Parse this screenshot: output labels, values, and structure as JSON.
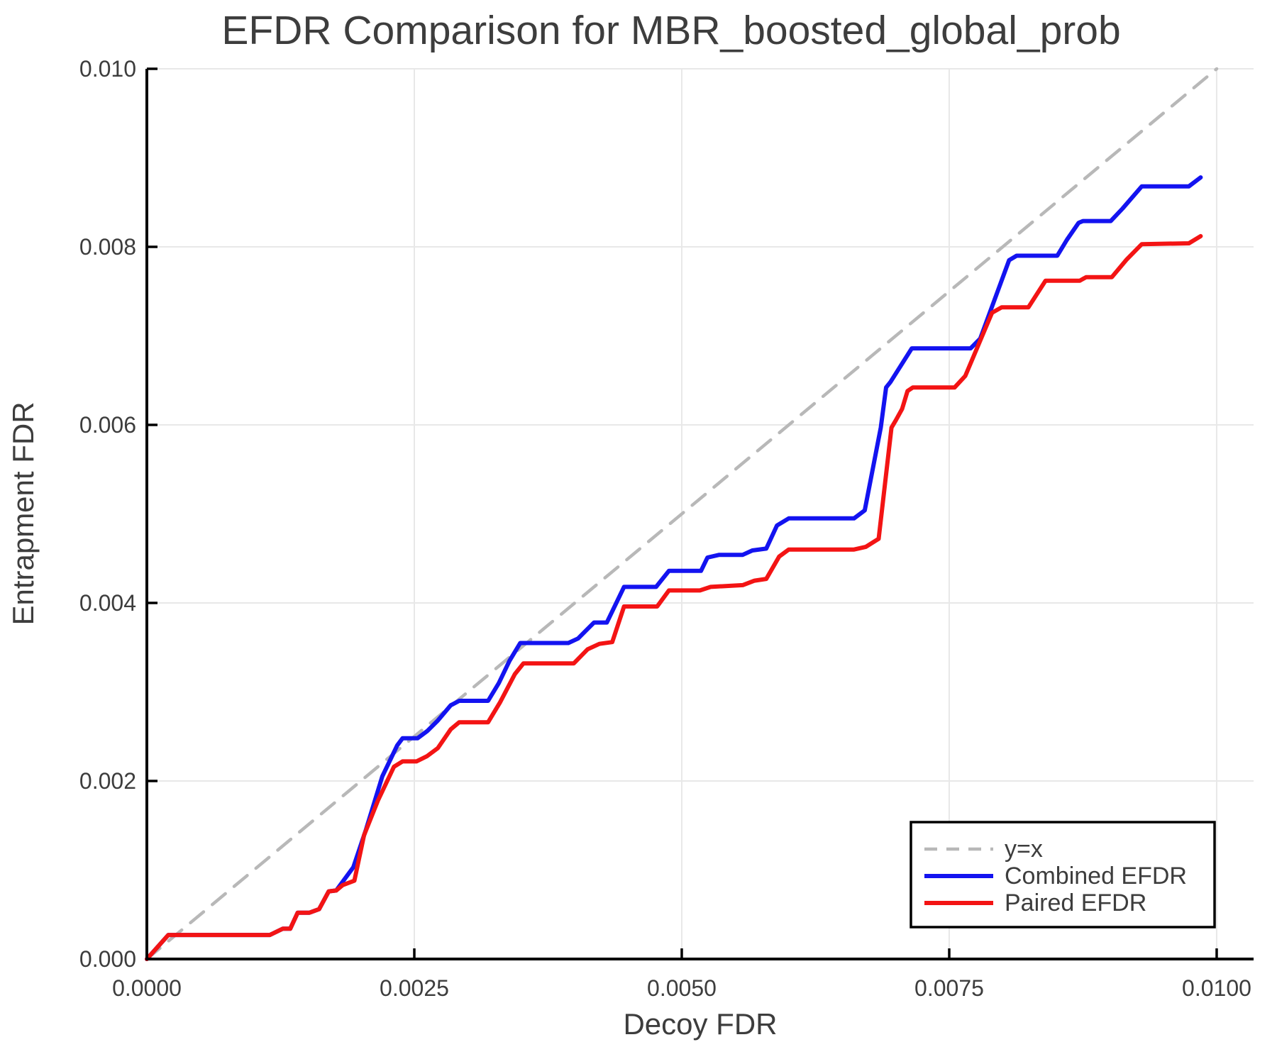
{
  "chart_data": {
    "type": "line",
    "title": "EFDR Comparison for MBR_boosted_global_prob",
    "xlabel": "Decoy FDR",
    "ylabel": "Entrapment FDR",
    "xlim": [
      0,
      0.010345
    ],
    "ylim": [
      0,
      0.01
    ],
    "x_ticks": [
      0.0,
      0.0025,
      0.005,
      0.0075,
      0.01
    ],
    "x_tick_labels": [
      "0.0000",
      "0.0025",
      "0.0050",
      "0.0075",
      "0.0100"
    ],
    "y_ticks": [
      0.0,
      0.002,
      0.004,
      0.006,
      0.008,
      0.01
    ],
    "y_tick_labels": [
      "0.000",
      "0.002",
      "0.004",
      "0.006",
      "0.008",
      "0.010"
    ],
    "grid": true,
    "legend_position": "lower right",
    "colors": {
      "grid": "#e8e8e8",
      "spine": "#000000",
      "text": "#3d3d3d",
      "identity": "#b8b8b8",
      "combined": "#1313f0",
      "paired": "#f31414"
    },
    "series": [
      {
        "name": "y=x",
        "style": "dashed",
        "color": "#b8b8b8",
        "points": [
          [
            0.0,
            0.0
          ],
          [
            0.01,
            0.01
          ]
        ]
      },
      {
        "name": "Combined EFDR",
        "style": "solid",
        "color": "#1313f0",
        "points": [
          [
            0.0,
            0.0
          ],
          [
            0.0002,
            0.00027
          ],
          [
            0.00115,
            0.00027
          ],
          [
            0.00127,
            0.00034
          ],
          [
            0.00134,
            0.00034
          ],
          [
            0.00141,
            0.00052
          ],
          [
            0.00152,
            0.00052
          ],
          [
            0.00161,
            0.00056
          ],
          [
            0.0017,
            0.00076
          ],
          [
            0.00177,
            0.00077
          ],
          [
            0.00193,
            0.00103
          ],
          [
            0.00205,
            0.00146
          ],
          [
            0.0022,
            0.00205
          ],
          [
            0.00234,
            0.0024
          ],
          [
            0.00239,
            0.00248
          ],
          [
            0.00253,
            0.00248
          ],
          [
            0.00262,
            0.00256
          ],
          [
            0.00272,
            0.00268
          ],
          [
            0.00284,
            0.00285
          ],
          [
            0.00292,
            0.0029
          ],
          [
            0.00319,
            0.0029
          ],
          [
            0.00329,
            0.0031
          ],
          [
            0.00339,
            0.00335
          ],
          [
            0.00349,
            0.00355
          ],
          [
            0.00394,
            0.00355
          ],
          [
            0.00403,
            0.0036
          ],
          [
            0.00418,
            0.00378
          ],
          [
            0.0043,
            0.00378
          ],
          [
            0.00446,
            0.00418
          ],
          [
            0.00476,
            0.00418
          ],
          [
            0.00488,
            0.00436
          ],
          [
            0.00518,
            0.00436
          ],
          [
            0.00524,
            0.00451
          ],
          [
            0.00535,
            0.00454
          ],
          [
            0.00557,
            0.00454
          ],
          [
            0.00566,
            0.00459
          ],
          [
            0.00579,
            0.00461
          ],
          [
            0.00589,
            0.00487
          ],
          [
            0.006,
            0.00495
          ],
          [
            0.00661,
            0.00495
          ],
          [
            0.00671,
            0.00504
          ],
          [
            0.00686,
            0.00597
          ],
          [
            0.00691,
            0.00642
          ],
          [
            0.00695,
            0.00648
          ],
          [
            0.00715,
            0.00686
          ],
          [
            0.0077,
            0.00686
          ],
          [
            0.00779,
            0.00697
          ],
          [
            0.00806,
            0.00785
          ],
          [
            0.00813,
            0.0079
          ],
          [
            0.00851,
            0.0079
          ],
          [
            0.0086,
            0.00808
          ],
          [
            0.00871,
            0.00827
          ],
          [
            0.00875,
            0.00829
          ],
          [
            0.00901,
            0.00829
          ],
          [
            0.00912,
            0.00843
          ],
          [
            0.0093,
            0.00868
          ],
          [
            0.00974,
            0.00868
          ],
          [
            0.00985,
            0.00878
          ]
        ]
      },
      {
        "name": "Paired EFDR",
        "style": "solid",
        "color": "#f31414",
        "points": [
          [
            0.0,
            0.0
          ],
          [
            0.0002,
            0.00027
          ],
          [
            0.00115,
            0.00027
          ],
          [
            0.00127,
            0.00034
          ],
          [
            0.00134,
            0.00034
          ],
          [
            0.00141,
            0.00052
          ],
          [
            0.00152,
            0.00052
          ],
          [
            0.00161,
            0.00056
          ],
          [
            0.0017,
            0.00076
          ],
          [
            0.00177,
            0.00077
          ],
          [
            0.00183,
            0.00083
          ],
          [
            0.00194,
            0.00088
          ],
          [
            0.00203,
            0.00139
          ],
          [
            0.00216,
            0.00178
          ],
          [
            0.00231,
            0.00216
          ],
          [
            0.00239,
            0.00222
          ],
          [
            0.00252,
            0.00222
          ],
          [
            0.00262,
            0.00228
          ],
          [
            0.00272,
            0.00237
          ],
          [
            0.00284,
            0.00258
          ],
          [
            0.00292,
            0.00266
          ],
          [
            0.00319,
            0.00266
          ],
          [
            0.0033,
            0.00288
          ],
          [
            0.00344,
            0.0032
          ],
          [
            0.00352,
            0.00332
          ],
          [
            0.00399,
            0.00332
          ],
          [
            0.00412,
            0.00348
          ],
          [
            0.00423,
            0.00354
          ],
          [
            0.00435,
            0.00356
          ],
          [
            0.00446,
            0.00396
          ],
          [
            0.00477,
            0.00396
          ],
          [
            0.00488,
            0.00414
          ],
          [
            0.00517,
            0.00414
          ],
          [
            0.00527,
            0.00418
          ],
          [
            0.00557,
            0.0042
          ],
          [
            0.00568,
            0.00425
          ],
          [
            0.00579,
            0.00427
          ],
          [
            0.00591,
            0.00452
          ],
          [
            0.006,
            0.0046
          ],
          [
            0.00661,
            0.0046
          ],
          [
            0.00672,
            0.00463
          ],
          [
            0.00684,
            0.00472
          ],
          [
            0.00696,
            0.00597
          ],
          [
            0.007,
            0.00605
          ],
          [
            0.00706,
            0.00618
          ],
          [
            0.00711,
            0.00638
          ],
          [
            0.00716,
            0.00642
          ],
          [
            0.00755,
            0.00642
          ],
          [
            0.00765,
            0.00655
          ],
          [
            0.0079,
            0.00726
          ],
          [
            0.00799,
            0.00732
          ],
          [
            0.00824,
            0.00732
          ],
          [
            0.0084,
            0.00762
          ],
          [
            0.00872,
            0.00762
          ],
          [
            0.00878,
            0.00766
          ],
          [
            0.00902,
            0.00766
          ],
          [
            0.00916,
            0.00786
          ],
          [
            0.0093,
            0.00803
          ],
          [
            0.00974,
            0.00804
          ],
          [
            0.00985,
            0.00812
          ]
        ]
      }
    ]
  },
  "legend": {
    "entries": [
      {
        "label": "y=x"
      },
      {
        "label": "Combined EFDR"
      },
      {
        "label": "Paired EFDR"
      }
    ]
  }
}
